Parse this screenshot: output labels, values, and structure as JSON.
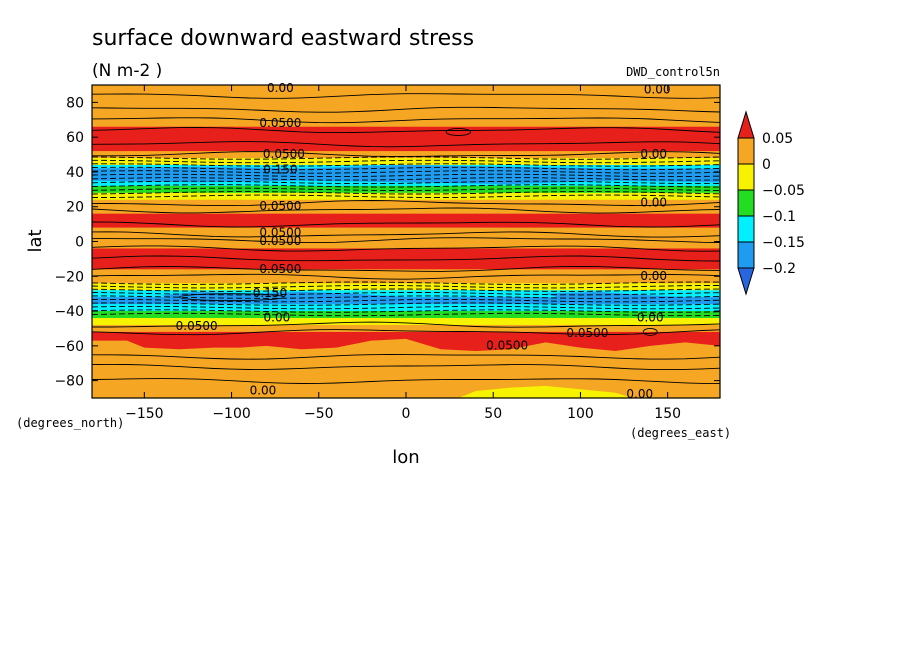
{
  "chart_data": {
    "type": "heatmap",
    "title": "surface downward eastward stress",
    "units": "(N m-2  )",
    "dataset": "DWD_control5n",
    "xlabel": "lon",
    "ylabel": "lat",
    "x_units": "(degrees_east)",
    "y_units": "(degrees_north)",
    "xlim": [
      -180,
      180
    ],
    "ylim": [
      -90,
      90
    ],
    "x_ticks": [
      -150,
      -100,
      -50,
      0,
      50,
      100,
      150
    ],
    "y_ticks": [
      -80,
      -60,
      -40,
      -20,
      0,
      20,
      40,
      60,
      80
    ],
    "colorbar": {
      "levels": [
        0.05,
        0,
        -0.05,
        -0.1,
        -0.15,
        -0.2
      ],
      "labels": [
        "0.05",
        "0",
        "−0.05",
        "−0.1",
        "−0.15",
        "−0.2"
      ],
      "colors": [
        "#e8201c",
        "#f5a623",
        "#f7f200",
        "#22dd22",
        "#00f0ff",
        "#1f9cf0",
        "#2866e0"
      ]
    },
    "zonal_profile": {
      "lat": [
        90,
        80,
        74,
        70,
        66,
        60,
        55,
        52,
        48,
        44,
        40,
        36,
        32,
        28,
        24,
        20,
        16,
        12,
        8,
        4,
        0,
        -4,
        -8,
        -12,
        -16,
        -20,
        -24,
        -28,
        -32,
        -36,
        -40,
        -44,
        -48,
        -52,
        -56,
        -60,
        -66,
        -72,
        -78,
        -84,
        -88,
        -90
      ],
      "stress": [
        0.01,
        0.02,
        0.03,
        0.045,
        0.06,
        0.065,
        0.06,
        0.03,
        -0.04,
        -0.12,
        -0.18,
        -0.15,
        -0.09,
        -0.04,
        0.0,
        0.03,
        0.06,
        0.065,
        0.045,
        0.03,
        0.04,
        0.05,
        0.07,
        0.06,
        0.04,
        0.02,
        -0.04,
        -0.11,
        -0.16,
        -0.15,
        -0.1,
        -0.03,
        0.02,
        0.06,
        0.07,
        0.065,
        0.04,
        0.02,
        0.01,
        0.005,
        -0.02,
        -0.01
      ]
    },
    "contour_labels": [
      "0.00",
      "0.00",
      "0.0500",
      "0.0500",
      "0.00",
      "0.150",
      "0.0500",
      "0.00",
      "0.0500",
      "0.0500",
      "0.0500",
      "0.00",
      "0.150",
      "0.00",
      "0.0500",
      "0.0500",
      "0.0500",
      "0.00",
      "0.00",
      "0.00"
    ],
    "grid": false
  }
}
